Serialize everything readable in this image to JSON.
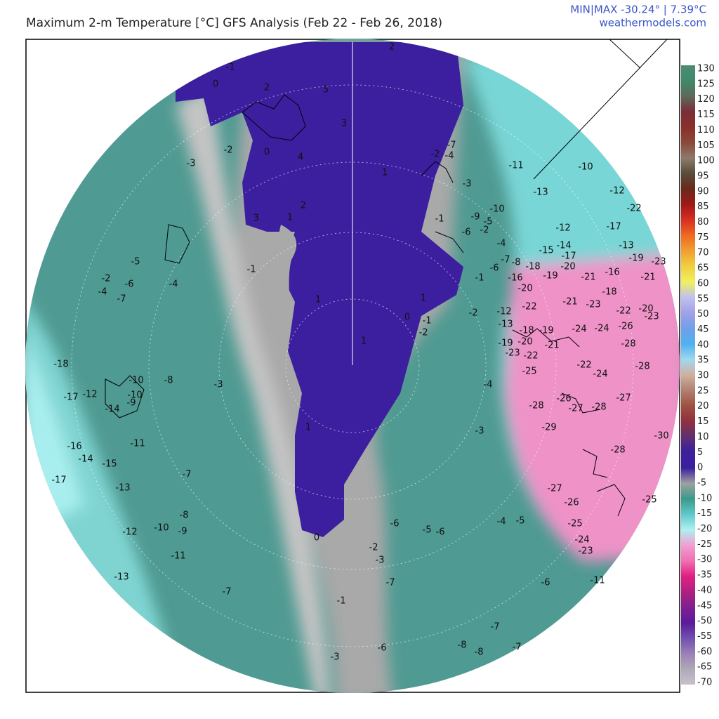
{
  "header": {
    "title": "Maximum 2-m Temperature [°C] GFS Analysis (Feb 22 - Feb 26, 2018)",
    "minmax": "MIN|MAX -30.24° | 7.39°C",
    "site": "weathermodels.com"
  },
  "colorbar": {
    "ticks": [
      130,
      125,
      120,
      115,
      110,
      105,
      100,
      95,
      90,
      85,
      80,
      75,
      70,
      65,
      60,
      55,
      50,
      45,
      40,
      35,
      30,
      25,
      20,
      15,
      10,
      5,
      0,
      -5,
      -10,
      -15,
      -20,
      -25,
      -30,
      -35,
      -40,
      -45,
      -50,
      -55,
      -60,
      -65,
      -70
    ],
    "colors": [
      "#4c8c70",
      "#3f8a6a",
      "#5a6a5a",
      "#7a2e3a",
      "#8a2e2a",
      "#8a4a3a",
      "#8c7a6a",
      "#5a4a3a",
      "#6a2a1a",
      "#a01818",
      "#d83020",
      "#f06a20",
      "#f0a030",
      "#f0d040",
      "#f0f060",
      "#c0c0f0",
      "#a0a0e8",
      "#70a0e8",
      "#50b0f0",
      "#a0d8f0",
      "#d0b0a0",
      "#b08070",
      "#a05040",
      "#903040",
      "#603070",
      "#3a1f9e",
      "#3a1f9e",
      "#a0a0a0",
      "#3a9a8a",
      "#60c8c8",
      "#b0f0f0",
      "#f0a0d0",
      "#f070b0",
      "#e02080",
      "#b02080",
      "#802090",
      "#5a1a9a",
      "#7050b0",
      "#9a80b8",
      "#b0a8b8",
      "#c8c0c8"
    ]
  },
  "map": {
    "labels": [
      -1,
      0,
      5,
      2,
      2,
      3,
      -2,
      -3,
      0,
      4,
      1,
      2,
      3,
      1,
      -1,
      1,
      1,
      0,
      -1,
      -2,
      1,
      1,
      0,
      -7,
      -4,
      -2,
      -3,
      -11,
      -10,
      -13,
      -12,
      -22,
      -10,
      -9,
      -5,
      -2,
      -1,
      -6,
      -4,
      -12,
      -17,
      -13,
      -14,
      -15,
      -17,
      -19,
      -23,
      -8,
      -7,
      -18,
      -20,
      -6,
      -1,
      -16,
      -19,
      -21,
      -16,
      -21,
      -18,
      -20,
      -22,
      -21,
      -23,
      -22,
      -20,
      -2,
      -12,
      -13,
      -18,
      -19,
      -24,
      -24,
      -26,
      -23,
      -28,
      -19,
      -20,
      -23,
      -22,
      -21,
      -22,
      -24,
      -28,
      -25,
      -4,
      -26,
      -27,
      -28,
      -27,
      -28,
      -29,
      -3,
      -30,
      -28,
      -27,
      -26,
      -25,
      -25,
      -24,
      -23,
      -6,
      -5,
      -6,
      -4,
      -5,
      -2,
      -3,
      -7,
      -6,
      -11,
      -1,
      -7,
      -8,
      -8,
      -7,
      -6,
      -3,
      -7,
      -11,
      -13,
      -12,
      -10,
      -9,
      -8,
      -7,
      -13,
      -15,
      -14,
      -16,
      -17,
      -11,
      -17,
      -18,
      -12,
      -14,
      -9,
      -10,
      -10,
      -8,
      -3,
      -5,
      -2,
      -4,
      -6,
      -7,
      -4
    ]
  }
}
